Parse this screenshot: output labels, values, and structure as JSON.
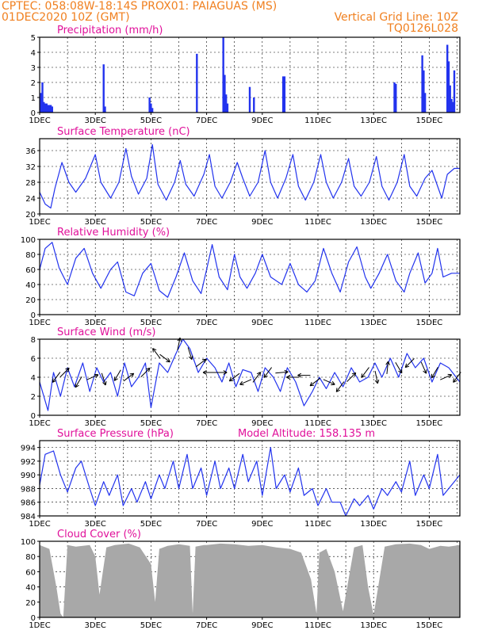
{
  "header": {
    "line1": "CPTEC:   058:08W-18:14S   PROX01: PAIAGUAS (MS)",
    "line2": "01DEC2020 10Z (GMT)",
    "grid_note": "Vertical Grid Line: 10Z",
    "code": "TQ0126L028"
  },
  "colors": {
    "header": "#f08020",
    "title": "#e0109a",
    "series": "#2233ee",
    "cloud": "#a8a8a8",
    "axis": "#000000"
  },
  "x_axis": {
    "labels": [
      "1DEC",
      "3DEC",
      "5DEC",
      "7DEC",
      "9DEC",
      "11DEC",
      "13DEC",
      "15DEC"
    ],
    "label_days": [
      1,
      3,
      5,
      7,
      9,
      11,
      13,
      15
    ],
    "range_days": [
      1,
      16.1
    ],
    "grid_hour": "10Z"
  },
  "chart_data": [
    {
      "type": "bar",
      "title": "Precipitation (mm/h)",
      "xlabel": "",
      "ylabel": "",
      "ylim": [
        0,
        5
      ],
      "yticks": [
        "0",
        "1",
        "2",
        "3",
        "4",
        "5"
      ],
      "x": [
        1.0,
        1.05,
        1.1,
        1.15,
        1.2,
        1.25,
        1.3,
        1.35,
        1.4,
        1.45,
        3.3,
        3.35,
        4.95,
        5.0,
        5.05,
        6.65,
        7.6,
        7.65,
        7.7,
        7.75,
        8.55,
        8.7,
        9.75,
        9.8,
        13.75,
        13.8,
        14.75,
        14.8,
        14.85,
        15.65,
        15.7,
        15.75,
        15.8,
        15.85,
        15.9
      ],
      "values": [
        1.0,
        1.3,
        2.0,
        0.7,
        0.6,
        0.6,
        0.5,
        0.5,
        0.5,
        0.4,
        3.2,
        0.4,
        1.0,
        0.6,
        0.3,
        3.9,
        5.0,
        2.5,
        1.2,
        0.6,
        1.7,
        1.0,
        2.4,
        2.4,
        2.0,
        1.9,
        3.8,
        2.8,
        1.3,
        4.5,
        3.4,
        1.8,
        0.9,
        0.7,
        2.8
      ]
    },
    {
      "type": "line",
      "title": "Surface Temperature (nC)",
      "xlabel": "",
      "ylabel": "",
      "ylim": [
        20,
        39
      ],
      "yticks": [
        "20",
        "24",
        "28",
        "32",
        "36"
      ],
      "x": [
        1.0,
        1.2,
        1.4,
        1.55,
        1.8,
        2.05,
        2.3,
        2.65,
        3.0,
        3.2,
        3.55,
        3.85,
        4.1,
        4.3,
        4.55,
        4.85,
        5.05,
        5.25,
        5.55,
        5.85,
        6.05,
        6.25,
        6.55,
        6.9,
        7.1,
        7.3,
        7.55,
        7.85,
        8.1,
        8.3,
        8.55,
        8.85,
        9.1,
        9.3,
        9.55,
        9.85,
        10.1,
        10.3,
        10.55,
        10.85,
        11.1,
        11.3,
        11.55,
        11.85,
        12.1,
        12.3,
        12.55,
        12.85,
        13.1,
        13.3,
        13.55,
        13.85,
        14.1,
        14.3,
        14.55,
        14.85,
        15.1,
        15.3,
        15.45,
        15.65,
        15.9,
        16.1
      ],
      "values": [
        25.5,
        22.5,
        21.5,
        26.5,
        33.0,
        28.0,
        25.5,
        29.0,
        35.0,
        28.0,
        24.0,
        28.0,
        36.5,
        29.5,
        25.0,
        29.0,
        37.5,
        27.5,
        23.5,
        28.0,
        33.5,
        27.5,
        24.5,
        30.0,
        35.0,
        27.0,
        24.0,
        28.0,
        33.0,
        29.0,
        24.5,
        28.0,
        36.0,
        28.0,
        24.0,
        29.0,
        35.0,
        27.0,
        23.5,
        28.0,
        35.0,
        28.0,
        24.0,
        28.0,
        34.0,
        27.0,
        24.5,
        28.0,
        34.5,
        27.0,
        23.5,
        28.0,
        35.0,
        27.0,
        24.5,
        29.0,
        31.0,
        27.0,
        24.0,
        30.0,
        31.5,
        31.5
      ]
    },
    {
      "type": "line",
      "title": "Relative Humidity (%)",
      "xlabel": "",
      "ylabel": "",
      "ylim": [
        0,
        100
      ],
      "yticks": [
        "0",
        "20",
        "40",
        "60",
        "80",
        "100"
      ],
      "x": [
        1.0,
        1.2,
        1.45,
        1.7,
        2.0,
        2.3,
        2.6,
        2.9,
        3.2,
        3.55,
        3.8,
        4.1,
        4.4,
        4.7,
        5.0,
        5.3,
        5.6,
        5.9,
        6.2,
        6.5,
        6.8,
        7.0,
        7.2,
        7.45,
        7.75,
        8.0,
        8.2,
        8.45,
        8.75,
        9.0,
        9.3,
        9.7,
        10.0,
        10.3,
        10.6,
        10.9,
        11.2,
        11.5,
        11.8,
        12.1,
        12.4,
        12.7,
        12.9,
        13.2,
        13.5,
        13.8,
        14.1,
        14.3,
        14.6,
        14.85,
        15.1,
        15.3,
        15.5,
        15.8,
        16.1
      ],
      "values": [
        60.0,
        88.0,
        96.0,
        62.0,
        40.0,
        75.0,
        88.0,
        55.0,
        35.0,
        60.0,
        70.0,
        30.0,
        25.0,
        55.0,
        68.0,
        32.0,
        23.0,
        50.0,
        82.0,
        45.0,
        28.0,
        60.0,
        93.0,
        50.0,
        33.0,
        80.0,
        50.0,
        35.0,
        55.0,
        80.0,
        50.0,
        40.0,
        68.0,
        40.0,
        30.0,
        45.0,
        88.0,
        55.0,
        30.0,
        70.0,
        90.0,
        50.0,
        35.0,
        55.0,
        80.0,
        45.0,
        30.0,
        55.0,
        82.0,
        42.0,
        55.0,
        88.0,
        50.0,
        55.0,
        55.0
      ]
    },
    {
      "type": "line",
      "title": "Surface Wind (m/s)",
      "xlabel": "",
      "ylabel": "",
      "ylim": [
        0,
        8
      ],
      "yticks": [
        "0",
        "2",
        "4",
        "6",
        "8"
      ],
      "x": [
        1.0,
        1.3,
        1.5,
        1.75,
        2.0,
        2.25,
        2.55,
        2.8,
        3.05,
        3.3,
        3.55,
        3.8,
        4.05,
        4.3,
        4.55,
        4.8,
        5.0,
        5.3,
        5.6,
        5.9,
        6.15,
        6.4,
        6.7,
        7.0,
        7.3,
        7.55,
        7.8,
        8.05,
        8.3,
        8.6,
        8.85,
        9.1,
        9.4,
        9.65,
        9.9,
        10.2,
        10.5,
        10.8,
        11.05,
        11.3,
        11.6,
        11.9,
        12.2,
        12.5,
        12.8,
        13.05,
        13.3,
        13.6,
        13.9,
        14.2,
        14.5,
        14.8,
        15.1,
        15.4,
        15.7,
        16.1
      ],
      "values": [
        3.5,
        0.5,
        4.5,
        2.0,
        5.0,
        3.0,
        5.5,
        2.5,
        5.0,
        3.5,
        4.5,
        2.0,
        5.5,
        3.0,
        4.0,
        5.5,
        0.8,
        5.5,
        4.5,
        6.5,
        8.0,
        7.0,
        4.5,
        6.0,
        5.0,
        3.5,
        5.5,
        3.0,
        4.8,
        4.5,
        2.5,
        5.0,
        4.0,
        2.5,
        5.0,
        3.5,
        1.0,
        2.5,
        4.0,
        2.8,
        4.5,
        3.0,
        5.0,
        3.5,
        4.0,
        5.5,
        4.0,
        6.0,
        4.0,
        6.5,
        5.0,
        6.0,
        3.5,
        5.5,
        5.0,
        3.5
      ],
      "barbs": [
        {
          "x": 1.6,
          "speed": 4.0,
          "toward": [
            -0.6,
            -0.8
          ]
        },
        {
          "x": 1.9,
          "speed": 4.5,
          "toward": [
            0.7,
            0.7
          ]
        },
        {
          "x": 2.4,
          "speed": 3.5,
          "toward": [
            -0.5,
            -0.85
          ]
        },
        {
          "x": 2.9,
          "speed": 4.0,
          "toward": [
            0.9,
            0.4
          ]
        },
        {
          "x": 3.3,
          "speed": 3.8,
          "toward": [
            0.3,
            -0.95
          ]
        },
        {
          "x": 3.8,
          "speed": 4.2,
          "toward": [
            -0.5,
            -0.85
          ]
        },
        {
          "x": 4.2,
          "speed": 4.0,
          "toward": [
            0.8,
            0.6
          ]
        },
        {
          "x": 4.8,
          "speed": 4.5,
          "toward": [
            0.7,
            0.7
          ]
        },
        {
          "x": 5.2,
          "speed": 6.5,
          "toward": [
            -0.6,
            0.8
          ]
        },
        {
          "x": 5.5,
          "speed": 6.0,
          "toward": [
            0.8,
            -0.6
          ]
        },
        {
          "x": 6.0,
          "speed": 7.5,
          "toward": [
            0.2,
            0.98
          ]
        },
        {
          "x": 6.4,
          "speed": 6.5,
          "toward": [
            0.3,
            -0.95
          ]
        },
        {
          "x": 6.8,
          "speed": 5.5,
          "toward": [
            0.8,
            0.6
          ]
        },
        {
          "x": 7.1,
          "speed": 4.5,
          "toward": [
            -1.0,
            0.0
          ]
        },
        {
          "x": 7.5,
          "speed": 4.5,
          "toward": [
            1.0,
            0.0
          ]
        },
        {
          "x": 8.0,
          "speed": 4.0,
          "toward": [
            -0.8,
            -0.6
          ]
        },
        {
          "x": 8.4,
          "speed": 3.5,
          "toward": [
            -0.9,
            -0.4
          ]
        },
        {
          "x": 8.8,
          "speed": 4.0,
          "toward": [
            0.6,
            0.8
          ]
        },
        {
          "x": 9.2,
          "speed": 4.5,
          "toward": [
            -0.6,
            -0.8
          ]
        },
        {
          "x": 9.7,
          "speed": 4.5,
          "toward": [
            1.0,
            0.1
          ]
        },
        {
          "x": 10.1,
          "speed": 4.0,
          "toward": [
            -1.0,
            0.0
          ]
        },
        {
          "x": 10.5,
          "speed": 4.2,
          "toward": [
            -1.0,
            0.0
          ]
        },
        {
          "x": 10.9,
          "speed": 3.5,
          "toward": [
            -0.8,
            -0.6
          ]
        },
        {
          "x": 11.4,
          "speed": 3.5,
          "toward": [
            0.9,
            -0.4
          ]
        },
        {
          "x": 11.8,
          "speed": 3.0,
          "toward": [
            -0.6,
            -0.8
          ]
        },
        {
          "x": 12.2,
          "speed": 4.0,
          "toward": [
            0.7,
            0.7
          ]
        },
        {
          "x": 12.7,
          "speed": 4.5,
          "toward": [
            -0.6,
            -0.8
          ]
        },
        {
          "x": 13.1,
          "speed": 4.0,
          "toward": [
            0.2,
            -0.98
          ]
        },
        {
          "x": 13.5,
          "speed": 5.0,
          "toward": [
            0.1,
            0.99
          ]
        },
        {
          "x": 13.9,
          "speed": 5.0,
          "toward": [
            0.5,
            -0.85
          ]
        },
        {
          "x": 14.3,
          "speed": 5.5,
          "toward": [
            -0.7,
            -0.7
          ]
        },
        {
          "x": 14.8,
          "speed": 5.0,
          "toward": [
            0.4,
            -0.9
          ]
        },
        {
          "x": 15.2,
          "speed": 4.5,
          "toward": [
            -0.5,
            -0.85
          ]
        },
        {
          "x": 15.6,
          "speed": 4.0,
          "toward": [
            0.9,
            0.4
          ]
        },
        {
          "x": 16.0,
          "speed": 4.0,
          "toward": [
            -0.6,
            -0.8
          ]
        }
      ]
    },
    {
      "type": "line",
      "title": "Surface Pressure (hPa)",
      "annotation": "Model Altitude: 158.135  m",
      "xlabel": "",
      "ylabel": "",
      "ylim": [
        984,
        995
      ],
      "yticks": [
        "984",
        "986",
        "988",
        "990",
        "992",
        "994"
      ],
      "x": [
        1.0,
        1.2,
        1.5,
        1.75,
        2.0,
        2.3,
        2.5,
        2.8,
        3.0,
        3.3,
        3.5,
        3.8,
        4.0,
        4.3,
        4.5,
        4.8,
        5.0,
        5.3,
        5.5,
        5.8,
        6.0,
        6.3,
        6.5,
        6.8,
        7.0,
        7.3,
        7.5,
        7.8,
        8.0,
        8.3,
        8.5,
        8.8,
        9.0,
        9.3,
        9.5,
        9.8,
        10.0,
        10.3,
        10.5,
        10.8,
        11.0,
        11.3,
        11.5,
        11.8,
        12.0,
        12.3,
        12.5,
        12.8,
        13.0,
        13.3,
        13.5,
        13.8,
        14.0,
        14.3,
        14.5,
        14.8,
        15.0,
        15.3,
        15.5,
        15.8,
        16.1
      ],
      "values": [
        988.5,
        993.0,
        993.5,
        990.0,
        987.5,
        991.0,
        992.0,
        988.0,
        985.5,
        989.0,
        987.0,
        990.0,
        985.5,
        988.0,
        986.0,
        989.0,
        986.5,
        990.0,
        988.0,
        992.0,
        988.0,
        993.0,
        988.0,
        991.0,
        987.0,
        992.0,
        988.0,
        991.0,
        988.0,
        993.0,
        989.0,
        992.0,
        987.0,
        994.0,
        988.0,
        990.0,
        987.5,
        991.0,
        987.0,
        988.0,
        985.5,
        988.0,
        986.0,
        986.0,
        984.0,
        986.5,
        985.5,
        987.0,
        985.0,
        988.0,
        987.0,
        989.0,
        987.5,
        992.0,
        987.0,
        990.0,
        988.0,
        993.0,
        987.0,
        988.5,
        990.0
      ]
    },
    {
      "type": "area",
      "title": "Cloud Cover (%)",
      "xlabel": "",
      "ylabel": "",
      "ylim": [
        0,
        100
      ],
      "yticks": [
        "0",
        "20",
        "40",
        "60",
        "80",
        "100"
      ],
      "x": [
        1.0,
        1.35,
        1.6,
        1.75,
        1.85,
        2.0,
        2.3,
        2.8,
        3.0,
        3.15,
        3.4,
        3.7,
        4.2,
        4.6,
        5.0,
        5.15,
        5.3,
        5.6,
        6.0,
        6.4,
        6.5,
        6.6,
        6.9,
        7.0,
        7.5,
        8.0,
        8.5,
        9.0,
        9.5,
        10.0,
        10.4,
        10.75,
        10.95,
        11.05,
        11.3,
        11.6,
        11.9,
        12.3,
        12.6,
        12.8,
        13.0,
        13.4,
        13.8,
        14.3,
        14.7,
        15.0,
        15.4,
        15.7,
        16.1
      ],
      "values": [
        95.0,
        90.0,
        40.0,
        5.0,
        0.0,
        95.0,
        93.0,
        95.0,
        80.0,
        30.0,
        92.0,
        95.0,
        97.0,
        92.0,
        70.0,
        20.0,
        90.0,
        94.0,
        96.0,
        94.0,
        5.0,
        93.0,
        95.0,
        95.0,
        97.0,
        96.0,
        94.0,
        95.0,
        92.0,
        90.0,
        85.0,
        50.0,
        5.0,
        85.0,
        90.0,
        60.0,
        8.0,
        92.0,
        95.0,
        40.0,
        3.0,
        93.0,
        96.0,
        97.0,
        95.0,
        90.0,
        94.0,
        93.0,
        95.0
      ]
    }
  ]
}
